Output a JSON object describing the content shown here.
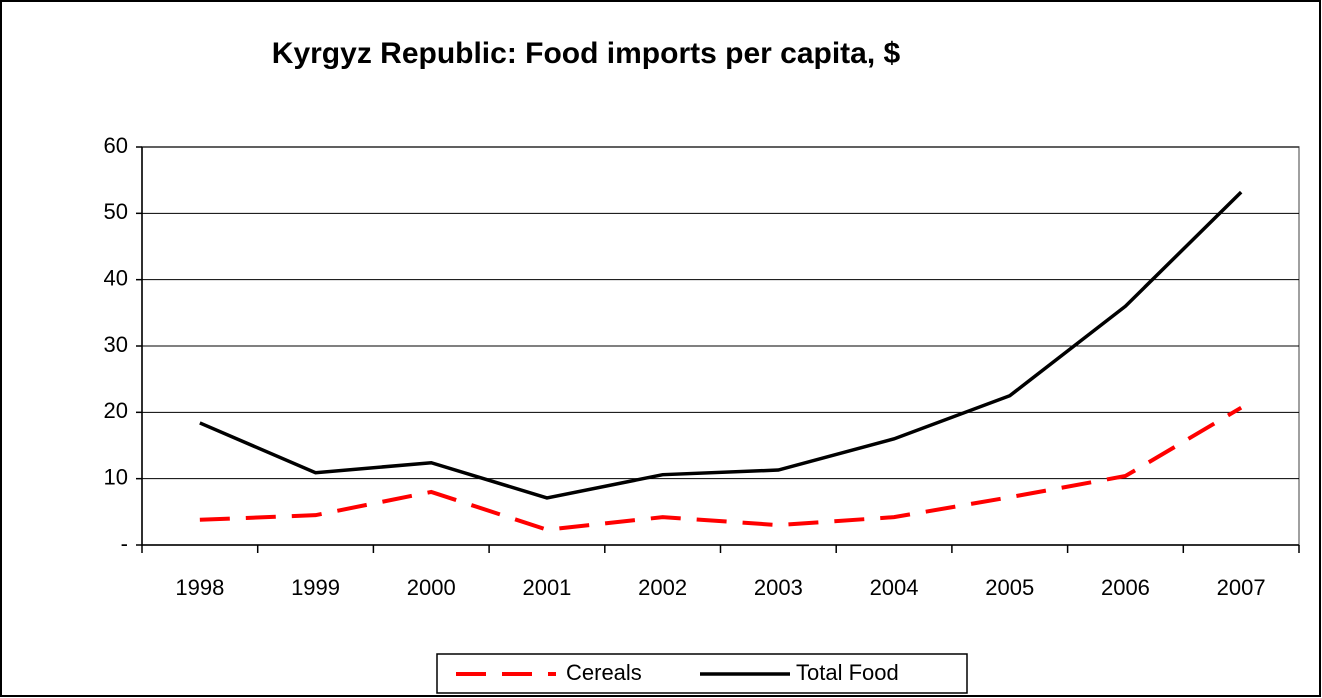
{
  "chart_data": {
    "type": "line",
    "title": "Kyrgyz Republic:  Food imports per capita, $",
    "categories": [
      "1998",
      "1999",
      "2000",
      "2001",
      "2002",
      "2003",
      "2004",
      "2005",
      "2006",
      "2007"
    ],
    "series": [
      {
        "name": "Cereals",
        "color": "#ff0000",
        "dashed": true,
        "values": [
          3.8,
          4.5,
          8.0,
          2.3,
          4.2,
          3.0,
          4.2,
          7.2,
          10.4,
          20.7
        ]
      },
      {
        "name": "Total Food",
        "color": "#000000",
        "dashed": false,
        "values": [
          18.4,
          10.9,
          12.4,
          7.1,
          10.6,
          11.3,
          16.0,
          22.5,
          36.0,
          53.2
        ]
      }
    ],
    "ylim": [
      0,
      60
    ],
    "yticks": [
      {
        "value": 0,
        "label": "-"
      },
      10,
      20,
      30,
      40,
      50,
      60
    ],
    "grid": true,
    "legend": "bottom"
  }
}
